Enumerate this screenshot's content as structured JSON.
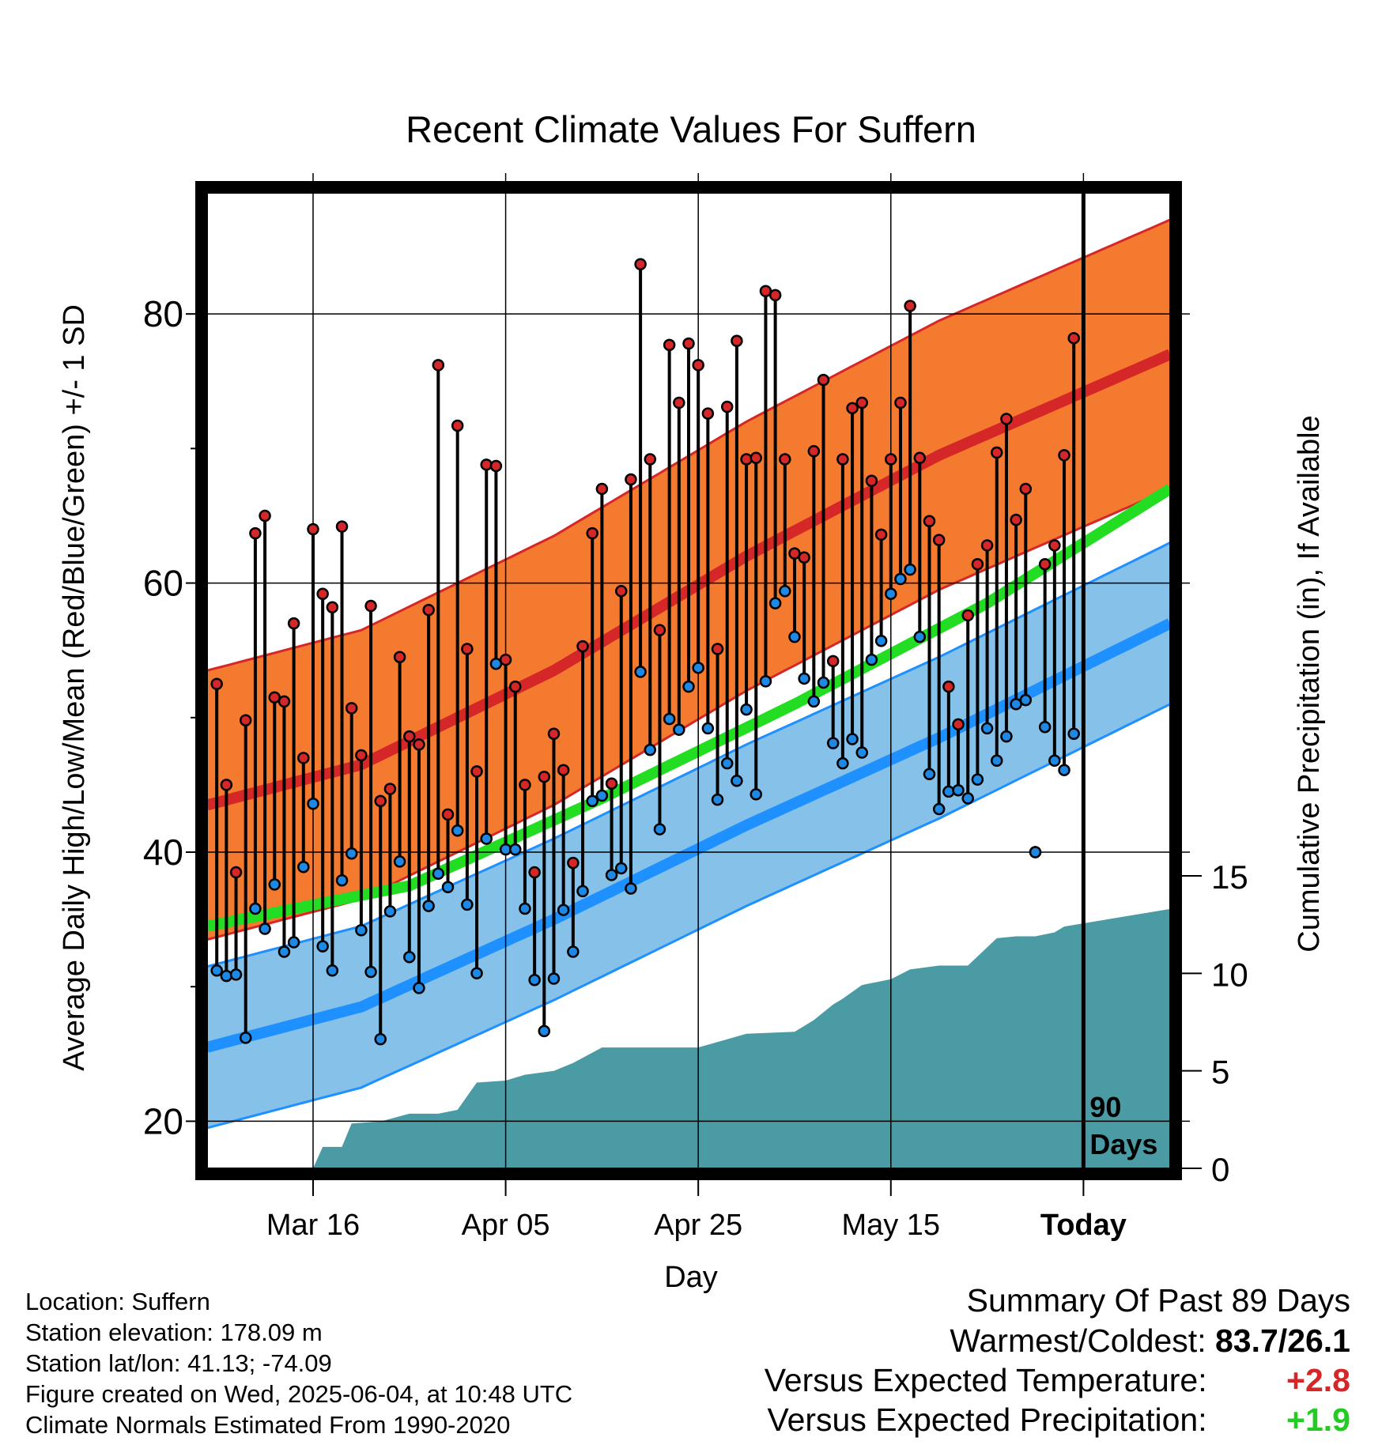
{
  "title": "Recent Climate Values For Suffern",
  "y_label_left": "Average Daily High/Low/Mean (Red/Blue/Green) +/- 1 SD",
  "y_label_right": "Cumulative Precipitation (in), If Available",
  "x_label": "Day",
  "x_ticks": [
    "Mar 16",
    "Apr 05",
    "Apr 25",
    "May 15",
    "Today"
  ],
  "left_ticks": [
    "20",
    "40",
    "60",
    "80"
  ],
  "right_ticks": [
    "0",
    "5",
    "10",
    "15"
  ],
  "today_annotation_line1": "90",
  "today_annotation_line2": "Days",
  "footer": {
    "location": "Location: Suffern",
    "elevation": "Station elevation: 178.09 m",
    "latlon": "Station lat/lon: 41.13; -74.09",
    "created": "Figure created on Wed, 2025-06-04, at 10:48 UTC",
    "normals": "Climate Normals Estimated From 1990-2020"
  },
  "summary": {
    "title": "Summary Of Past 89 Days",
    "warm_cold_label": "Warmest/Coldest:",
    "warm_cold_value": "83.7/26.1",
    "temp_label": "Versus Expected Temperature:",
    "temp_value": "+2.8",
    "precip_label": "Versus Expected Precipitation:",
    "precip_value": "+1.9"
  },
  "colors": {
    "high_band": "#f47a30",
    "high_mean": "#d62728",
    "low_band": "#85c1e9",
    "low_mean": "#1e90ff",
    "mean_line": "#22dd22",
    "precip": "#4a9ba4",
    "high_dot": "#d62728",
    "low_dot": "#1e88e5"
  },
  "chart_data": {
    "type": "line",
    "x_unit": "days relative to today (0 = today)",
    "xlim": [
      -91,
      9
    ],
    "ylim_left": [
      16.5,
      89
    ],
    "ylim_right": [
      0,
      35
    ],
    "grid": true,
    "normal_high": {
      "x": [
        -91,
        -75,
        -55,
        -35,
        -15,
        9
      ],
      "mean": [
        43.5,
        46.5,
        53.5,
        62,
        69.5,
        77
      ],
      "sd": 10
    },
    "normal_low": {
      "x": [
        -91,
        -75,
        -55,
        -35,
        -15,
        9
      ],
      "mean": [
        25.5,
        28.5,
        35,
        42,
        48.5,
        57
      ],
      "sd": 6
    },
    "normal_mean": {
      "x": [
        -91,
        -70,
        -50,
        -30,
        -10,
        9
      ],
      "mean": [
        34.5,
        37.5,
        44,
        51,
        58.5,
        67
      ]
    },
    "daily_x": [
      -90,
      -89,
      -88,
      -87,
      -86,
      -85,
      -84,
      -83,
      -82,
      -81,
      -80,
      -79,
      -78,
      -77,
      -76,
      -75,
      -74,
      -73,
      -72,
      -71,
      -70,
      -69,
      -68,
      -67,
      -66,
      -65,
      -64,
      -63,
      -62,
      -61,
      -60,
      -59,
      -58,
      -57,
      -56,
      -55,
      -54,
      -53,
      -52,
      -51,
      -50,
      -49,
      -48,
      -47,
      -46,
      -45,
      -44,
      -43,
      -42,
      -41,
      -40,
      -39,
      -38,
      -37,
      -36,
      -35,
      -34,
      -33,
      -32,
      -31,
      -30,
      -29,
      -28,
      -27,
      -26,
      -25,
      -24,
      -23,
      -22,
      -21,
      -20,
      -19,
      -18,
      -17,
      -16,
      -15,
      -14,
      -13,
      -12,
      -11,
      -10,
      -9,
      -8,
      -7,
      -6,
      -5,
      -4,
      -3,
      -2,
      -1
    ],
    "daily_high": [
      52.5,
      45,
      38.5,
      49.8,
      63.7,
      65,
      51.5,
      51.2,
      57,
      47,
      64,
      59.2,
      58.2,
      64.2,
      50.7,
      47.2,
      58.3,
      43.8,
      44.7,
      54.5,
      48.6,
      48,
      58,
      76.2,
      42.8,
      71.7,
      55.1,
      46,
      68.8,
      68.7,
      54.3,
      52.3,
      45,
      38.5,
      45.6,
      48.8,
      46.1,
      39.2,
      55.3,
      63.7,
      67,
      45.1,
      59.4,
      67.7,
      83.7,
      69.2,
      56.5,
      77.7,
      73.4,
      77.8,
      76.2,
      72.6,
      55.1,
      73.1,
      78,
      69.2,
      69.3,
      81.7,
      81.4,
      69.2,
      62.2,
      61.9,
      69.8,
      75.1,
      54.2,
      69.2,
      73,
      73.4,
      67.6,
      63.6,
      69.2,
      73.4,
      80.6,
      69.3,
      64.6,
      63.2,
      52.3,
      49.5,
      57.6,
      61.4,
      62.8,
      69.7,
      72.2,
      64.7,
      67,
      40,
      61.4,
      62.8,
      69.5,
      78.2
    ],
    "daily_low": [
      31.2,
      30.8,
      30.9,
      26.2,
      35.8,
      34.3,
      37.6,
      32.6,
      33.3,
      38.9,
      43.6,
      33,
      31.2,
      37.9,
      39.9,
      34.2,
      31.1,
      26.1,
      35.6,
      39.3,
      32.2,
      29.9,
      36,
      38.4,
      37.4,
      41.6,
      36.1,
      31,
      41,
      54,
      40.2,
      40.2,
      35.8,
      30.5,
      26.7,
      30.6,
      35.7,
      32.6,
      37.1,
      43.8,
      44.2,
      38.3,
      38.8,
      37.3,
      53.4,
      47.6,
      41.7,
      49.9,
      49.1,
      52.3,
      53.7,
      49.2,
      43.9,
      46.6,
      45.3,
      50.6,
      44.3,
      52.7,
      58.5,
      59.4,
      56,
      52.9,
      51.2,
      52.6,
      48.1,
      46.6,
      48.4,
      47.4,
      54.3,
      55.7,
      59.2,
      60.3,
      61,
      56,
      45.8,
      43.2,
      44.5,
      44.6,
      44,
      45.4,
      49.2,
      46.8,
      48.6,
      51,
      51.3,
      40,
      49.3,
      46.8,
      46.1,
      48.8
    ],
    "precip_x": [
      -90,
      -80,
      -79,
      -77,
      -76,
      -73,
      -70,
      -67,
      -65,
      -63,
      -60,
      -58,
      -55,
      -53,
      -50,
      -47,
      -45,
      -40,
      -35,
      -30,
      -28,
      -26,
      -25,
      -23,
      -20,
      -18,
      -15,
      -12,
      -9,
      -7,
      -5,
      -3,
      -2,
      9
    ],
    "precip_cum": [
      0,
      0,
      1.1,
      1.1,
      2.3,
      2.4,
      2.8,
      2.8,
      3,
      4.4,
      4.5,
      4.8,
      5,
      5.4,
      6.2,
      6.2,
      6.2,
      6.2,
      6.9,
      7,
      7.6,
      8.4,
      8.7,
      9.4,
      9.7,
      10.2,
      10.4,
      10.4,
      11.8,
      11.9,
      11.9,
      12.1,
      12.4,
      13.3
    ]
  }
}
